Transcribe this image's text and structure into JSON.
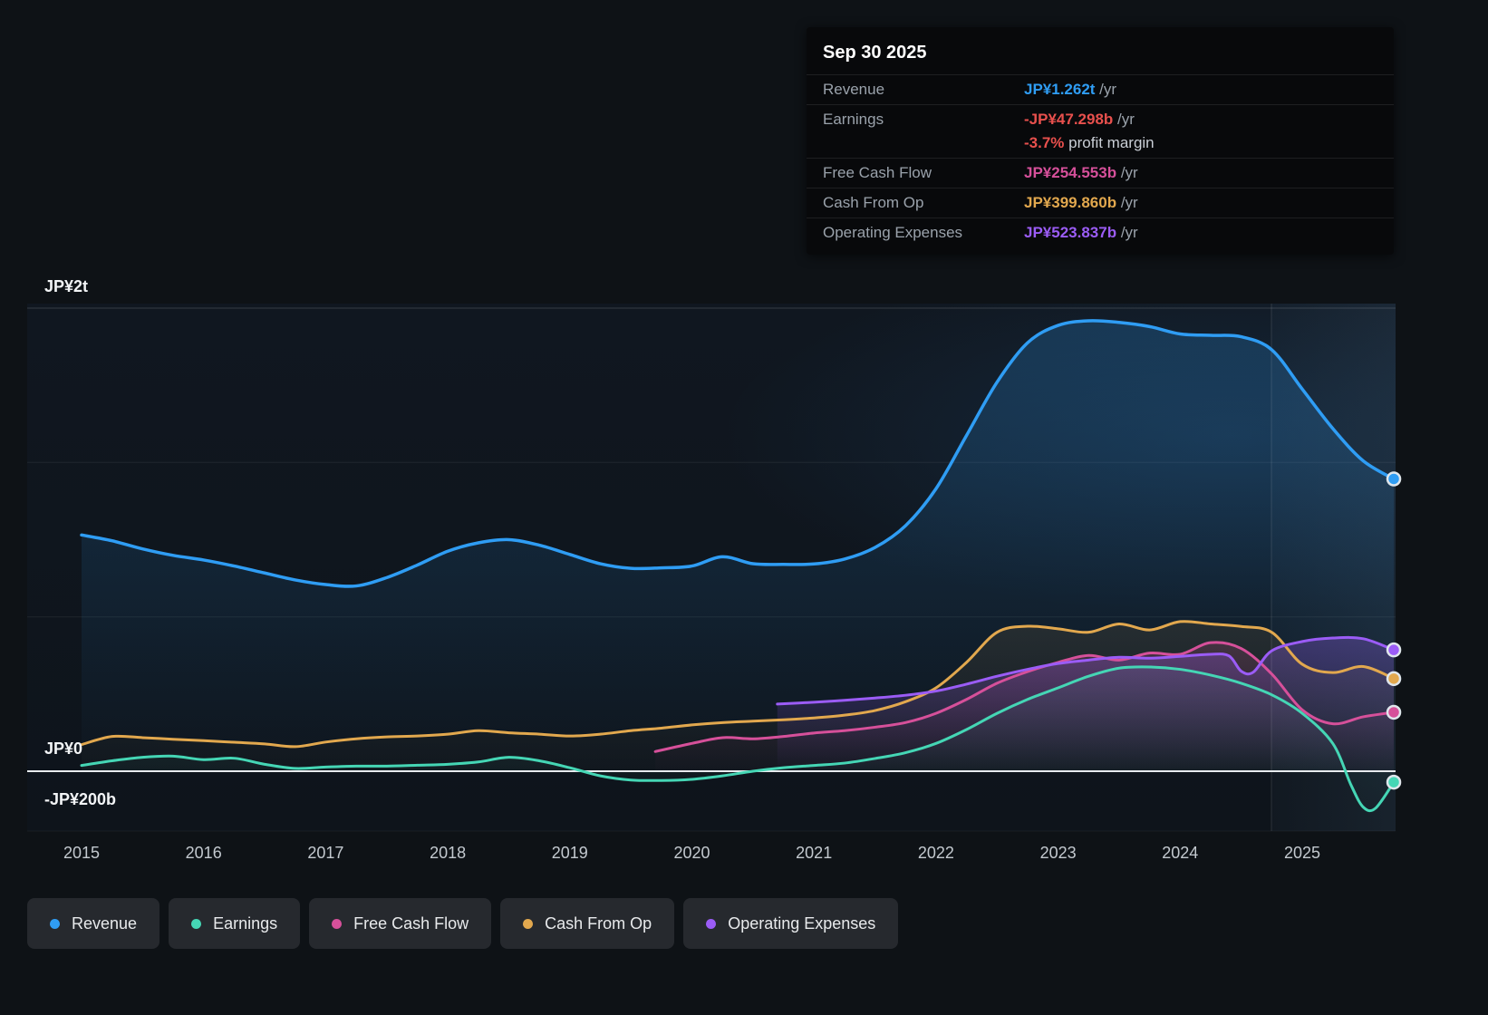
{
  "tooltip": {
    "date": "Sep 30 2025",
    "rows": [
      {
        "label": "Revenue",
        "value": "JP¥1.262t",
        "suffix": " /yr",
        "color": "#2f9df4"
      },
      {
        "label": "Earnings",
        "value": "-JP¥47.298b",
        "suffix": " /yr",
        "color": "#e8504d"
      },
      {
        "label": "",
        "value": "-3.7%",
        "suffix": " profit margin",
        "color": "#e8504d"
      },
      {
        "label": "Free Cash Flow",
        "value": "JP¥254.553b",
        "suffix": " /yr",
        "color": "#d6509a"
      },
      {
        "label": "Cash From Op",
        "value": "JP¥399.860b",
        "suffix": " /yr",
        "color": "#e2a84e"
      },
      {
        "label": "Operating Expenses",
        "value": "JP¥523.837b",
        "suffix": " /yr",
        "color": "#9b5cf6"
      }
    ]
  },
  "chart_data": {
    "type": "line",
    "title": "",
    "y_unit": "JP¥ billions",
    "xlim": [
      2014.55,
      2025.9
    ],
    "ylim": [
      -270,
      2100
    ],
    "grid": true,
    "legend_position": "bottom",
    "x_tick_labels": [
      "2015",
      "2016",
      "2017",
      "2018",
      "2019",
      "2020",
      "2021",
      "2022",
      "2023",
      "2024",
      "2025"
    ],
    "y_tick_labels": [
      {
        "label": "JP¥2t",
        "value": 2000
      },
      {
        "label": "JP¥0",
        "value": 0
      },
      {
        "label": "-JP¥200b",
        "value": -200
      }
    ],
    "series": [
      {
        "key": "revenue",
        "name": "Revenue",
        "color": "#2f9df4",
        "line_width": 3.5,
        "fill_opacity": 0.22,
        "points": [
          [
            2015,
            1020
          ],
          [
            2015.25,
            995
          ],
          [
            2015.5,
            960
          ],
          [
            2015.75,
            932
          ],
          [
            2016,
            912
          ],
          [
            2016.25,
            886
          ],
          [
            2016.5,
            856
          ],
          [
            2016.75,
            826
          ],
          [
            2017,
            806
          ],
          [
            2017.25,
            800
          ],
          [
            2017.5,
            836
          ],
          [
            2017.75,
            890
          ],
          [
            2018,
            950
          ],
          [
            2018.25,
            986
          ],
          [
            2018.5,
            1000
          ],
          [
            2018.75,
            976
          ],
          [
            2019,
            936
          ],
          [
            2019.25,
            896
          ],
          [
            2019.5,
            876
          ],
          [
            2019.75,
            878
          ],
          [
            2020,
            886
          ],
          [
            2020.25,
            926
          ],
          [
            2020.5,
            896
          ],
          [
            2020.75,
            893
          ],
          [
            2021,
            895
          ],
          [
            2021.25,
            916
          ],
          [
            2021.5,
            966
          ],
          [
            2021.75,
            1060
          ],
          [
            2022,
            1220
          ],
          [
            2022.25,
            1450
          ],
          [
            2022.5,
            1680
          ],
          [
            2022.75,
            1850
          ],
          [
            2023,
            1925
          ],
          [
            2023.25,
            1945
          ],
          [
            2023.5,
            1938
          ],
          [
            2023.75,
            1920
          ],
          [
            2024,
            1888
          ],
          [
            2024.25,
            1882
          ],
          [
            2024.5,
            1876
          ],
          [
            2024.75,
            1820
          ],
          [
            2025,
            1650
          ],
          [
            2025.25,
            1480
          ],
          [
            2025.5,
            1340
          ],
          [
            2025.75,
            1262
          ]
        ]
      },
      {
        "key": "earnings",
        "name": "Earnings",
        "color": "#45d6b5",
        "line_width": 3,
        "fill_opacity": 0.1,
        "points": [
          [
            2015,
            25
          ],
          [
            2015.25,
            45
          ],
          [
            2015.5,
            60
          ],
          [
            2015.75,
            65
          ],
          [
            2016,
            50
          ],
          [
            2016.25,
            56
          ],
          [
            2016.5,
            30
          ],
          [
            2016.75,
            12
          ],
          [
            2017,
            18
          ],
          [
            2017.25,
            22
          ],
          [
            2017.5,
            22
          ],
          [
            2017.75,
            26
          ],
          [
            2018,
            30
          ],
          [
            2018.25,
            40
          ],
          [
            2018.5,
            60
          ],
          [
            2018.75,
            45
          ],
          [
            2019,
            15
          ],
          [
            2019.25,
            -20
          ],
          [
            2019.5,
            -38
          ],
          [
            2019.75,
            -40
          ],
          [
            2020,
            -35
          ],
          [
            2020.25,
            -20
          ],
          [
            2020.5,
            0
          ],
          [
            2020.75,
            15
          ],
          [
            2021,
            25
          ],
          [
            2021.25,
            35
          ],
          [
            2021.5,
            55
          ],
          [
            2021.75,
            80
          ],
          [
            2022,
            120
          ],
          [
            2022.25,
            180
          ],
          [
            2022.5,
            250
          ],
          [
            2022.75,
            310
          ],
          [
            2023,
            360
          ],
          [
            2023.25,
            410
          ],
          [
            2023.5,
            445
          ],
          [
            2023.75,
            450
          ],
          [
            2024,
            440
          ],
          [
            2024.25,
            415
          ],
          [
            2024.5,
            380
          ],
          [
            2024.75,
            330
          ],
          [
            2025,
            250
          ],
          [
            2025.25,
            120
          ],
          [
            2025.4,
            -60
          ],
          [
            2025.5,
            -155
          ],
          [
            2025.6,
            -160
          ],
          [
            2025.75,
            -47.298
          ]
        ]
      },
      {
        "key": "free-cash-flow",
        "name": "Free Cash Flow",
        "color": "#d6509a",
        "line_width": 3,
        "fill_opacity": 0.18,
        "points": [
          [
            2019.7,
            85
          ],
          [
            2020,
            120
          ],
          [
            2020.25,
            145
          ],
          [
            2020.5,
            140
          ],
          [
            2020.75,
            150
          ],
          [
            2021,
            165
          ],
          [
            2021.25,
            175
          ],
          [
            2021.5,
            190
          ],
          [
            2021.75,
            210
          ],
          [
            2022,
            250
          ],
          [
            2022.25,
            310
          ],
          [
            2022.5,
            380
          ],
          [
            2022.75,
            430
          ],
          [
            2023,
            470
          ],
          [
            2023.25,
            500
          ],
          [
            2023.5,
            480
          ],
          [
            2023.75,
            510
          ],
          [
            2024,
            505
          ],
          [
            2024.25,
            555
          ],
          [
            2024.5,
            530
          ],
          [
            2024.75,
            420
          ],
          [
            2025,
            265
          ],
          [
            2025.25,
            205
          ],
          [
            2025.5,
            235
          ],
          [
            2025.75,
            254.553
          ]
        ]
      },
      {
        "key": "cash-from-op",
        "name": "Cash From Op",
        "color": "#e2a84e",
        "line_width": 3,
        "fill_opacity": 0.1,
        "points": [
          [
            2015,
            115
          ],
          [
            2015.25,
            150
          ],
          [
            2015.5,
            145
          ],
          [
            2015.75,
            138
          ],
          [
            2016,
            132
          ],
          [
            2016.25,
            125
          ],
          [
            2016.5,
            118
          ],
          [
            2016.75,
            106
          ],
          [
            2017,
            126
          ],
          [
            2017.25,
            140
          ],
          [
            2017.5,
            148
          ],
          [
            2017.75,
            152
          ],
          [
            2018,
            160
          ],
          [
            2018.25,
            175
          ],
          [
            2018.5,
            166
          ],
          [
            2018.75,
            160
          ],
          [
            2019,
            152
          ],
          [
            2019.25,
            160
          ],
          [
            2019.5,
            175
          ],
          [
            2019.75,
            186
          ],
          [
            2020,
            200
          ],
          [
            2020.25,
            210
          ],
          [
            2020.5,
            216
          ],
          [
            2020.75,
            222
          ],
          [
            2021,
            230
          ],
          [
            2021.25,
            242
          ],
          [
            2021.5,
            262
          ],
          [
            2021.75,
            300
          ],
          [
            2022,
            360
          ],
          [
            2022.25,
            470
          ],
          [
            2022.5,
            600
          ],
          [
            2022.75,
            626
          ],
          [
            2023,
            615
          ],
          [
            2023.25,
            600
          ],
          [
            2023.5,
            636
          ],
          [
            2023.75,
            610
          ],
          [
            2024,
            646
          ],
          [
            2024.25,
            636
          ],
          [
            2024.5,
            625
          ],
          [
            2024.75,
            600
          ],
          [
            2025,
            462
          ],
          [
            2025.25,
            426
          ],
          [
            2025.5,
            452
          ],
          [
            2025.75,
            399.86
          ]
        ]
      },
      {
        "key": "operating-expenses",
        "name": "Operating Expenses",
        "color": "#9b5cf6",
        "line_width": 3,
        "fill_opacity": 0.3,
        "points": [
          [
            2020.7,
            290
          ],
          [
            2021,
            298
          ],
          [
            2021.25,
            306
          ],
          [
            2021.5,
            316
          ],
          [
            2021.75,
            328
          ],
          [
            2022,
            346
          ],
          [
            2022.25,
            376
          ],
          [
            2022.5,
            410
          ],
          [
            2022.75,
            440
          ],
          [
            2023,
            465
          ],
          [
            2023.25,
            480
          ],
          [
            2023.5,
            492
          ],
          [
            2023.75,
            488
          ],
          [
            2024,
            496
          ],
          [
            2024.25,
            505
          ],
          [
            2024.4,
            498
          ],
          [
            2024.5,
            432
          ],
          [
            2024.6,
            428
          ],
          [
            2024.75,
            520
          ],
          [
            2025,
            560
          ],
          [
            2025.25,
            575
          ],
          [
            2025.5,
            572
          ],
          [
            2025.75,
            523.837
          ]
        ]
      }
    ]
  }
}
